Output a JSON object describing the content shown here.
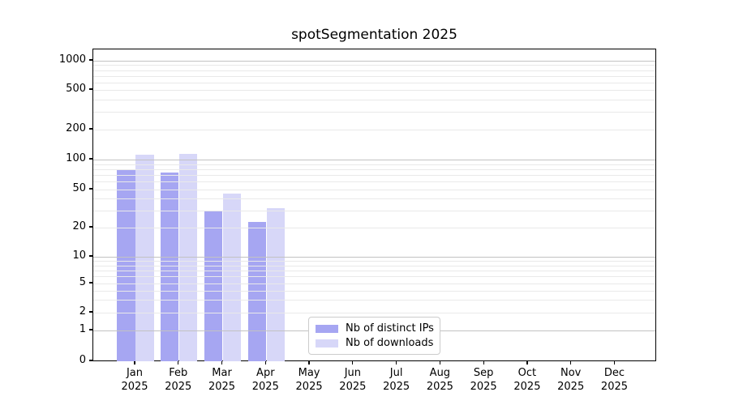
{
  "title": "spotSegmentation 2025",
  "chart_data": {
    "type": "bar",
    "title": "spotSegmentation 2025",
    "categories": [
      "Jan",
      "Feb",
      "Mar",
      "Apr",
      "May",
      "Jun",
      "Jul",
      "Aug",
      "Sep",
      "Oct",
      "Nov",
      "Dec"
    ],
    "year_label": "2025",
    "series": [
      {
        "name": "Nb of distinct IPs",
        "color": "#a6a6f2",
        "values": [
          80,
          74,
          30,
          23,
          0,
          0,
          0,
          0,
          0,
          0,
          0,
          0
        ]
      },
      {
        "name": "Nb of downloads",
        "color": "#d7d7f8",
        "values": [
          112,
          114,
          45,
          32,
          0,
          0,
          0,
          0,
          0,
          0,
          0,
          0
        ]
      }
    ],
    "yscale": "symlog",
    "ylim": [
      0,
      1300
    ],
    "yticks": [
      0,
      1,
      2,
      5,
      10,
      20,
      50,
      100,
      200,
      500,
      1000
    ],
    "major_gridline_values": [
      1,
      10,
      100,
      1000
    ],
    "minor_gridline_values": [
      2,
      3,
      4,
      5,
      6,
      7,
      8,
      9,
      20,
      30,
      40,
      50,
      60,
      70,
      80,
      90,
      200,
      300,
      400,
      500,
      600,
      700,
      800,
      900
    ],
    "grid": "both",
    "legend_position": "lower center",
    "colors": {
      "bar_dark": "#a6a6f2",
      "bar_light": "#d7d7f8",
      "major_grid": "#c2c2c2",
      "minor_grid": "#e9e9e9",
      "spine": "#000000",
      "legend_border": "#cccccc"
    }
  }
}
